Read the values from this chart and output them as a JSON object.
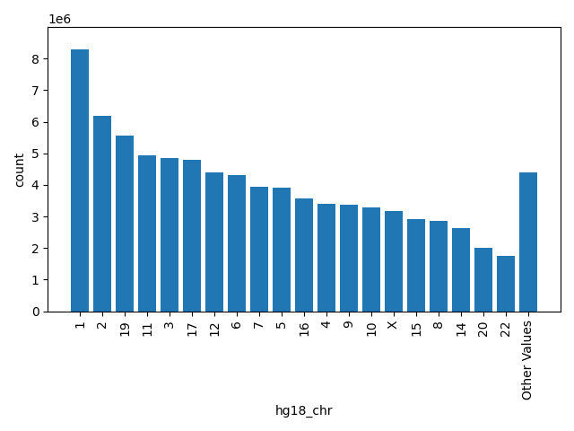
{
  "categories": [
    "1",
    "2",
    "19",
    "11",
    "3",
    "17",
    "12",
    "6",
    "7",
    "5",
    "16",
    "4",
    "9",
    "10",
    "X",
    "15",
    "8",
    "14",
    "20",
    "22",
    "Other Values"
  ],
  "values": [
    8300000,
    6200000,
    5550000,
    4950000,
    4850000,
    4800000,
    4400000,
    4300000,
    3950000,
    3900000,
    3570000,
    3400000,
    3370000,
    3280000,
    3180000,
    2920000,
    2870000,
    2620000,
    2020000,
    1740000,
    4390000
  ],
  "bar_color": "#2077b4",
  "ylabel": "count",
  "xlabel": "hg18_chr",
  "ylim": [
    0,
    9000000
  ],
  "yticks": [
    0,
    1000000,
    2000000,
    3000000,
    4000000,
    5000000,
    6000000,
    7000000,
    8000000
  ],
  "figsize": [
    6.4,
    4.8
  ],
  "dpi": 100
}
